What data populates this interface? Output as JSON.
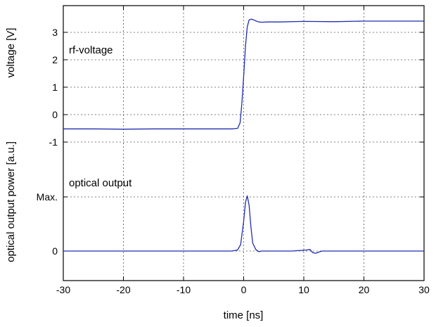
{
  "chart_data": {
    "type": "line",
    "xlabel": "time [ns]",
    "xlim": [
      -30,
      30
    ],
    "x_ticks": [
      "-30",
      "-20",
      "-10",
      "0",
      "10",
      "20",
      "30"
    ],
    "grid": true,
    "panels": [
      {
        "name": "voltage",
        "ylabel": "voltage [V]",
        "ylim": [
          -1,
          3.75
        ],
        "y_ticks": [
          {
            "value": 3,
            "label": "3"
          },
          {
            "value": 2,
            "label": "2"
          },
          {
            "value": 1,
            "label": "1"
          },
          {
            "value": 0,
            "label": "0"
          },
          {
            "value": -1,
            "label": "-1"
          }
        ],
        "annotation": "rf-voltage",
        "series": [
          {
            "x": [
              -30,
              -25,
              -20,
              -15,
              -10,
              -5,
              -2,
              -1,
              -0.6,
              -0.3,
              0,
              0.3,
              0.6,
              0.9,
              1.2,
              1.5,
              2,
              2.5,
              3,
              4,
              6,
              10,
              15,
              20,
              25,
              30
            ],
            "y": [
              -0.52,
              -0.52,
              -0.53,
              -0.52,
              -0.52,
              -0.52,
              -0.52,
              -0.5,
              -0.3,
              0.4,
              1.4,
              2.5,
              3.2,
              3.45,
              3.48,
              3.47,
              3.42,
              3.38,
              3.37,
              3.38,
              3.38,
              3.4,
              3.39,
              3.41,
              3.41,
              3.41
            ]
          }
        ]
      },
      {
        "name": "optical",
        "ylabel": "optical output power [a.u.]",
        "ylim": [
          -0.3,
          1.3
        ],
        "y_ticks": [
          {
            "value": 1,
            "label": "Max."
          },
          {
            "value": 0,
            "label": "0"
          }
        ],
        "annotation": "optical output",
        "series": [
          {
            "x": [
              -30,
              -25,
              -20,
              -15,
              -10,
              -5,
              -2,
              -1,
              -0.5,
              0,
              0.3,
              0.6,
              0.9,
              1.2,
              1.5,
              2,
              2.5,
              3,
              5,
              8,
              10.5,
              11,
              11.5,
              12,
              12.5,
              13,
              15,
              20,
              25,
              30
            ],
            "y": [
              0,
              0,
              0,
              0,
              0,
              0,
              0,
              0.02,
              0.12,
              0.55,
              0.9,
              1.02,
              0.85,
              0.45,
              0.15,
              0.03,
              -0.01,
              0,
              0,
              0,
              0.02,
              0.03,
              -0.03,
              -0.04,
              -0.02,
              0,
              0,
              0,
              0,
              0
            ]
          }
        ]
      }
    ]
  }
}
